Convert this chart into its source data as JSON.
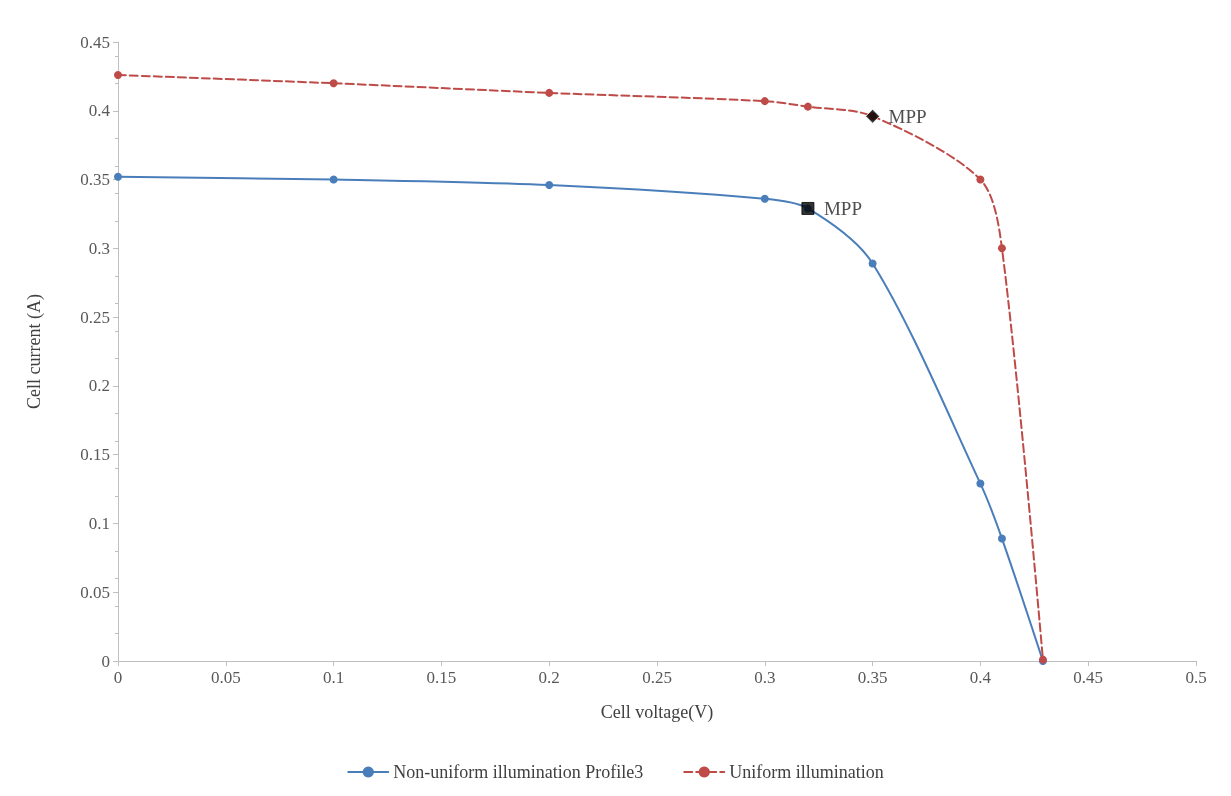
{
  "chart_data": {
    "type": "line",
    "xlabel": "Cell voltage(V)",
    "ylabel": "Cell current (A)",
    "xlim": [
      0,
      0.5
    ],
    "xticks": [
      0,
      0.05,
      0.1,
      0.15,
      0.2,
      0.25,
      0.3,
      0.35,
      0.4,
      0.45,
      0.5
    ],
    "ylim": [
      0,
      0.45
    ],
    "yticks": [
      0,
      0.05,
      0.1,
      0.15,
      0.2,
      0.25,
      0.3,
      0.35,
      0.4,
      0.45
    ],
    "grid": false,
    "legend": "bottom",
    "series": [
      {
        "name": "Non-uniform illumination Profile3",
        "color": "#4a7ebb",
        "marker": "circle",
        "line_style": "solid",
        "x": [
          0,
          0.1,
          0.2,
          0.3,
          0.32,
          0.35,
          0.4,
          0.41,
          0.429
        ],
        "values": [
          0.352,
          0.35,
          0.346,
          0.336,
          0.329,
          0.289,
          0.129,
          0.089,
          0
        ]
      },
      {
        "name": "Uniform illumination",
        "color": "#be4b48",
        "marker": "circle",
        "line_style": "dashed",
        "x": [
          0,
          0.1,
          0.2,
          0.3,
          0.32,
          0.35,
          0.4,
          0.41,
          0.429
        ],
        "values": [
          0.426,
          0.42,
          0.413,
          0.407,
          0.403,
          0.396,
          0.35,
          0.3,
          0.001
        ]
      },
      {
        "type": "scatter",
        "color": "#000000",
        "marker": "square",
        "x": [
          0.32
        ],
        "values": [
          0.329
        ]
      },
      {
        "type": "scatter",
        "color": "#000000",
        "marker": "diamond",
        "x": [
          0.35
        ],
        "values": [
          0.396
        ]
      }
    ],
    "annotations": [
      {
        "text": "MPP",
        "x": 0.32,
        "y": 0.329
      },
      {
        "text": "MPP",
        "x": 0.35,
        "y": 0.396
      }
    ]
  }
}
